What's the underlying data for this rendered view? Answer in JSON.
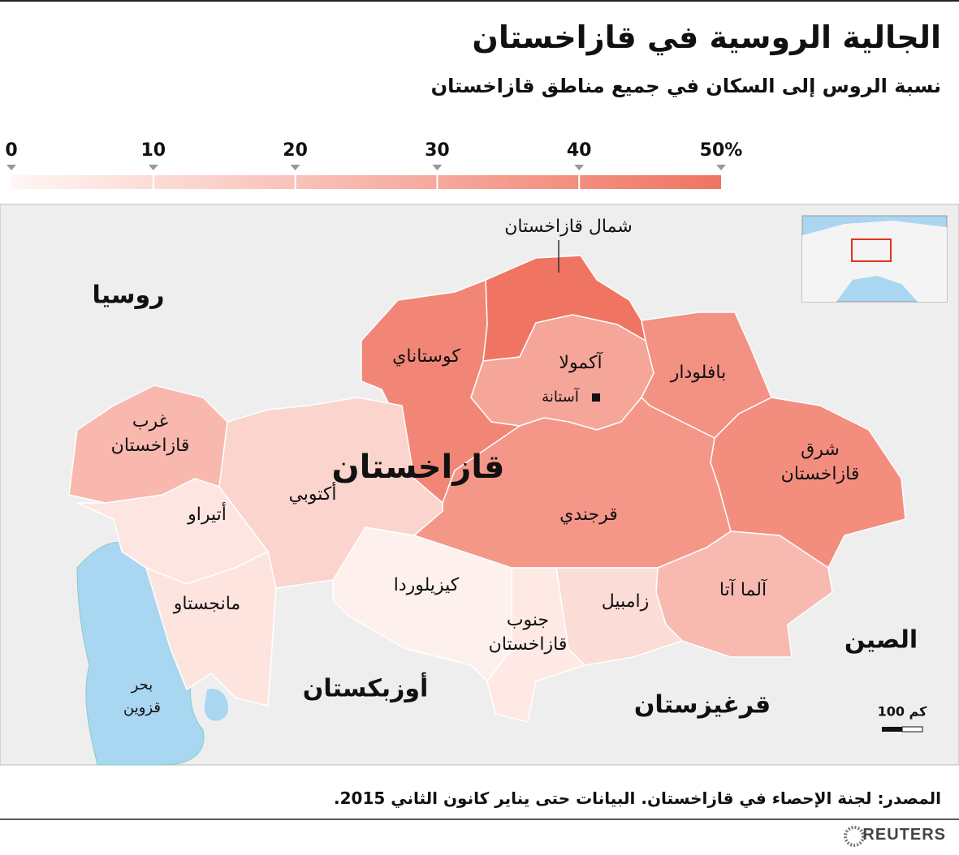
{
  "header": {
    "title": "الجالية الروسية في قازاخستان",
    "subtitle": "نسبة الروس إلى السكان في جميع مناطق قازاخستان"
  },
  "legend": {
    "lim": [
      0,
      50
    ],
    "ticks": [
      0,
      10,
      20,
      30,
      40,
      {
        "value": 50,
        "label": "50%"
      }
    ],
    "colors": [
      "#fff6f3",
      "#f07462"
    ]
  },
  "regions": [
    {
      "name": [
        "شمال قازاخستان"
      ],
      "value": 50
    },
    {
      "name": [
        "كوستاناي"
      ],
      "value": 43
    },
    {
      "name": [
        "بافلودار"
      ],
      "value": 39
    },
    {
      "name": [
        "شرق",
        "قازاخستان"
      ],
      "value": 40
    },
    {
      "name": [
        "آكمولا"
      ],
      "value": 31
    },
    {
      "name": [
        "قرجندي"
      ],
      "value": 37
    },
    {
      "name": [
        "آلما آتا"
      ],
      "value": 23
    },
    {
      "name": [
        "زامبيل"
      ],
      "value": 10
    },
    {
      "name": [
        "جنوب",
        "قازاخستان"
      ],
      "value": 5
    },
    {
      "name": [
        "كيزيلوردا"
      ],
      "value": 2
    },
    {
      "name": [
        "أكتوبي"
      ],
      "value": 13
    },
    {
      "name": [
        "غرب",
        "قازاخستان"
      ],
      "value": 24
    },
    {
      "name": [
        "أتيراو"
      ],
      "value": 6
    },
    {
      "name": [
        "مانجستاو"
      ],
      "value": 7
    }
  ],
  "labels": {
    "country": "قازاخستان",
    "capital": "آستانة",
    "neighbors": [
      "روسيا",
      "الصين",
      "أوزبكستان",
      "قرغيزستان"
    ],
    "sea": [
      "بحر",
      "قزوين"
    ],
    "scale": "100 كم"
  },
  "footer": {
    "source": "المصدر: لجنة الإحصاء في قازاخستان. البيانات حتى يناير كانون الثاني 2015.",
    "brand": "REUTERS"
  }
}
